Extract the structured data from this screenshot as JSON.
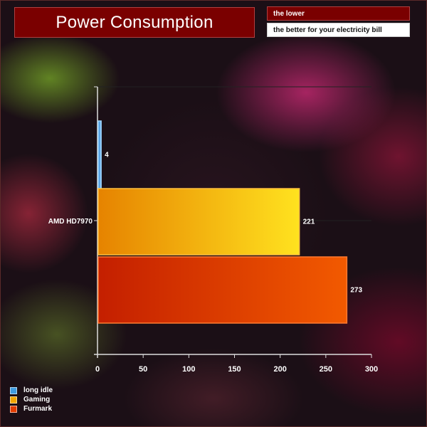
{
  "header": {
    "title": "Power Consumption",
    "tag_top": "the lower",
    "tag_bottom": "the better for your electricity bill"
  },
  "colors": {
    "title_bg": "#7a0000",
    "long_idle": "#3f9be0",
    "gaming": "#f2a600",
    "furmark": "#e23c00"
  },
  "chart_data": {
    "type": "bar",
    "orientation": "horizontal",
    "categories": [
      "AMD HD7970"
    ],
    "series": [
      {
        "name": "long idle",
        "values": [
          4
        ]
      },
      {
        "name": "Gaming",
        "values": [
          221
        ]
      },
      {
        "name": "Furmark",
        "values": [
          273
        ]
      }
    ],
    "xlim": [
      0,
      300
    ],
    "x_ticks": [
      0,
      50,
      100,
      150,
      200,
      250,
      300
    ],
    "grid": "horizontal",
    "legend": "bottom-left"
  }
}
